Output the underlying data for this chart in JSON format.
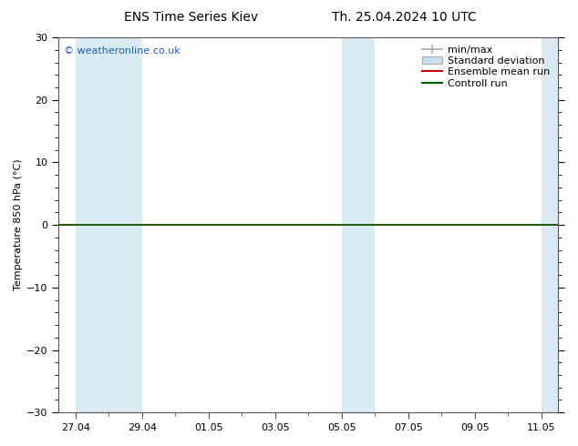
{
  "title_left": "ENS Time Series Kiev",
  "title_right": "Th. 25.04.2024 10 UTC",
  "ylabel": "Temperature 850 hPa (°C)",
  "ylim": [
    -30,
    30
  ],
  "yticks": [
    -30,
    -20,
    -10,
    0,
    10,
    20,
    30
  ],
  "xtick_labels": [
    "27.04",
    "29.04",
    "01.05",
    "03.05",
    "05.05",
    "07.05",
    "09.05",
    "11.05"
  ],
  "shaded_color": "#daeaf5",
  "zero_line_color": "#006600",
  "ensemble_mean_color": "#cc0000",
  "control_run_color": "#006600",
  "minmax_color": "#aaaaaa",
  "stddev_color": "#c8dff0",
  "copyright_text": "© weatheronline.co.uk",
  "copyright_color": "#1a5fb4",
  "background_color": "#ffffff",
  "plot_bg_color": "#ffffff",
  "border_color": "#555555",
  "legend_entries": [
    "min/max",
    "Standard deviation",
    "Ensemble mean run",
    "Controll run"
  ],
  "legend_colors": [
    "#aaaaaa",
    "#c8dff0",
    "#cc0000",
    "#006600"
  ],
  "title_fontsize": 10,
  "label_fontsize": 8,
  "tick_fontsize": 8,
  "legend_fontsize": 8
}
